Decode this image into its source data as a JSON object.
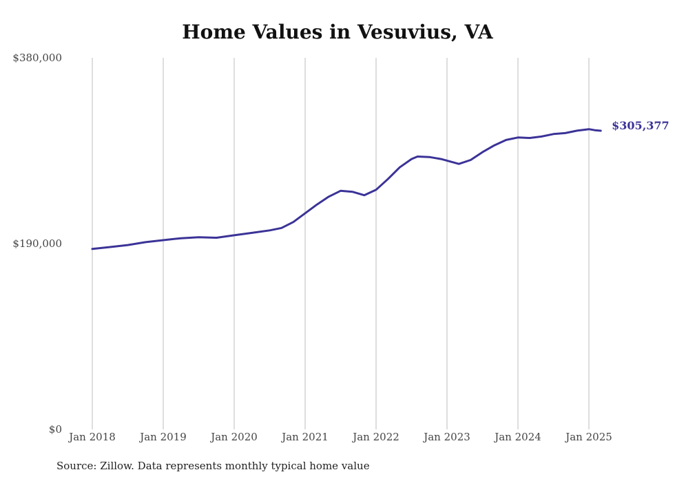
{
  "chart_data": {
    "type": "line",
    "title": "Home Values in Vesuvius, VA",
    "xlabel": "",
    "ylabel": "",
    "x_tick_labels": [
      "Jan 2018",
      "Jan 2019",
      "Jan 2020",
      "Jan 2021",
      "Jan 2022",
      "Jan 2023",
      "Jan 2024",
      "Jan 2025"
    ],
    "y_tick_labels": [
      "$0",
      "$190,000",
      "$380,000"
    ],
    "ylim": [
      0,
      380000
    ],
    "xlim": [
      "2018-01",
      "2025-03"
    ],
    "grid": "vertical",
    "legend": "none",
    "end_label": "$305,377",
    "series": [
      {
        "color": "#3b3397",
        "points": [
          [
            "2018-01",
            184500
          ],
          [
            "2018-04",
            186500
          ],
          [
            "2018-07",
            188500
          ],
          [
            "2018-10",
            191500
          ],
          [
            "2019-01",
            193500
          ],
          [
            "2019-04",
            195500
          ],
          [
            "2019-07",
            196500
          ],
          [
            "2019-10",
            196000
          ],
          [
            "2020-01",
            198500
          ],
          [
            "2020-04",
            201000
          ],
          [
            "2020-07",
            203500
          ],
          [
            "2020-09",
            206000
          ],
          [
            "2020-11",
            212000
          ],
          [
            "2021-01",
            221000
          ],
          [
            "2021-03",
            230000
          ],
          [
            "2021-05",
            238000
          ],
          [
            "2021-07",
            244000
          ],
          [
            "2021-09",
            243000
          ],
          [
            "2021-11",
            239500
          ],
          [
            "2022-01",
            245000
          ],
          [
            "2022-03",
            256000
          ],
          [
            "2022-05",
            268000
          ],
          [
            "2022-07",
            276500
          ],
          [
            "2022-08",
            279000
          ],
          [
            "2022-10",
            278500
          ],
          [
            "2022-12",
            276500
          ],
          [
            "2023-03",
            271500
          ],
          [
            "2023-05",
            275500
          ],
          [
            "2023-07",
            283500
          ],
          [
            "2023-09",
            290500
          ],
          [
            "2023-11",
            296000
          ],
          [
            "2024-01",
            298500
          ],
          [
            "2024-03",
            298000
          ],
          [
            "2024-05",
            299500
          ],
          [
            "2024-07",
            302000
          ],
          [
            "2024-09",
            303000
          ],
          [
            "2024-11",
            305500
          ],
          [
            "2025-01",
            307000
          ],
          [
            "2025-02",
            306000
          ],
          [
            "2025-03",
            305377
          ]
        ]
      }
    ]
  }
}
